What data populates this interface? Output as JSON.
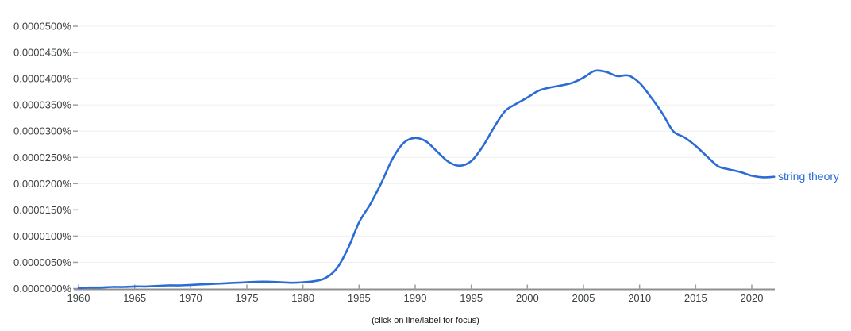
{
  "caption": "(click on line/label for focus)",
  "series_label": "string theory",
  "colors": {
    "line": "#2a6bd4",
    "grid": "#efefef",
    "axis": "#8f8f8f",
    "tick": "#9e9e9e",
    "axis_text": "#3c4043",
    "caption_text": "#202124",
    "background": "#ffffff"
  },
  "chart_data": {
    "type": "line",
    "title": "",
    "xlabel": "",
    "ylabel": "",
    "grid": "horizontal",
    "legend": "inline end-of-line label",
    "xlim": [
      1959.6,
      2022.1
    ],
    "ylim": [
      0,
      5e-05
    ],
    "x_ticks": [
      1960,
      1965,
      1970,
      1975,
      1980,
      1985,
      1990,
      1995,
      2000,
      2005,
      2010,
      2015,
      2020
    ],
    "x_tick_labels": [
      "1960",
      "1965",
      "1970",
      "1975",
      "1980",
      "1985",
      "1990",
      "1995",
      "2000",
      "2005",
      "2010",
      "2015",
      "2020"
    ],
    "y_ticks": [
      0,
      5e-06,
      1e-05,
      1.5e-05,
      2e-05,
      2.5e-05,
      3e-05,
      3.5e-05,
      4e-05,
      4.5e-05,
      5e-05
    ],
    "y_tick_labels": [
      "0.0000000%",
      "0.0000050%",
      "0.0000100%",
      "0.0000150%",
      "0.0000200%",
      "0.0000250%",
      "0.0000300%",
      "0.0000350%",
      "0.0000400%",
      "0.0000450%",
      "0.0000500%"
    ],
    "series": [
      {
        "name": "string theory",
        "color": "#2a6bd4",
        "x": [
          1960,
          1961,
          1962,
          1963,
          1964,
          1965,
          1966,
          1967,
          1968,
          1969,
          1970,
          1971,
          1972,
          1973,
          1974,
          1975,
          1976,
          1977,
          1978,
          1979,
          1980,
          1981,
          1982,
          1983,
          1984,
          1985,
          1986,
          1987,
          1988,
          1989,
          1990,
          1991,
          1992,
          1993,
          1994,
          1995,
          1996,
          1997,
          1998,
          1999,
          2000,
          2001,
          2002,
          2003,
          2004,
          2005,
          2006,
          2007,
          2008,
          2009,
          2010,
          2011,
          2012,
          2013,
          2014,
          2015,
          2016,
          2017,
          2018,
          2019,
          2020,
          2021,
          2022
        ],
        "values": [
          1e-07,
          2e-07,
          2e-07,
          3e-07,
          3e-07,
          4e-07,
          4e-07,
          5e-07,
          6e-07,
          6e-07,
          7e-07,
          8e-07,
          9e-07,
          1e-06,
          1.1e-06,
          1.2e-06,
          1.3e-06,
          1.3e-06,
          1.2e-06,
          1.1e-06,
          1.2e-06,
          1.4e-06,
          2e-06,
          3.8e-06,
          7.6e-06,
          1.26e-05,
          1.61e-05,
          2.02e-05,
          2.48e-05,
          2.78e-05,
          2.87e-05,
          2.8e-05,
          2.6e-05,
          2.41e-05,
          2.34e-05,
          2.43e-05,
          2.7e-05,
          3.06e-05,
          3.38e-05,
          3.52e-05,
          3.64e-05,
          3.77e-05,
          3.83e-05,
          3.87e-05,
          3.92e-05,
          4.02e-05,
          4.15e-05,
          4.13e-05,
          4.05e-05,
          4.06e-05,
          3.92e-05,
          3.65e-05,
          3.35e-05,
          3e-05,
          2.88e-05,
          2.72e-05,
          2.52e-05,
          2.33e-05,
          2.27e-05,
          2.22e-05,
          2.15e-05,
          2.12e-05,
          2.13e-05
        ]
      }
    ]
  }
}
